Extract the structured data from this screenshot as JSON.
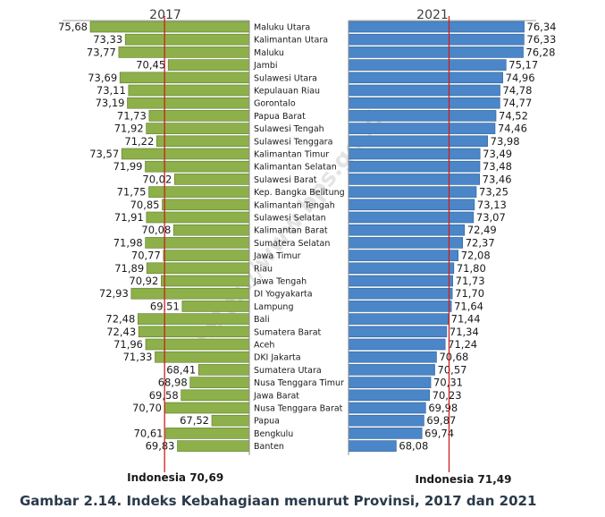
{
  "chart_data": {
    "type": "bar",
    "title": "Indeks Kebahagiaan menurut Provinsi, 2017 dan 2021",
    "panels": [
      {
        "year": "2017",
        "bar_color": "#8db04a",
        "reference_value": 70.69,
        "reference_label": "Indonesia 70,69",
        "orientation": "bars extend left from center",
        "categories": [
          "Maluku Utara",
          "Kalimantan Utara",
          "Maluku",
          "Jambi",
          "Sulawesi Utara",
          "Kepulauan Riau",
          "Gorontalo",
          "Papua Barat",
          "Sulawesi Tengah",
          "Sulawesi Tenggara",
          "Kalimantan Timur",
          "Kalimantan Selatan",
          "Sulawesi Barat",
          "Kep. Bangka Belitung",
          "Kalimantan Tengah",
          "Sulawesi Selatan",
          "Kalimantan Barat",
          "Sumatera Selatan",
          "Jawa Timur",
          "Riau",
          "Jawa Tengah",
          "DI Yogyakarta",
          "Lampung",
          "Bali",
          "Sumatera Barat",
          "Aceh",
          "DKI Jakarta",
          "Sumatera Utara",
          "Nusa Tenggara Timur",
          "Jawa Barat",
          "Nusa Tenggara Barat",
          "Papua",
          "Bengkulu",
          "Banten"
        ],
        "values": [
          75.68,
          73.33,
          73.77,
          70.45,
          73.69,
          73.11,
          73.19,
          71.73,
          71.92,
          71.22,
          73.57,
          71.99,
          70.02,
          71.75,
          70.85,
          71.91,
          70.08,
          71.98,
          70.77,
          71.89,
          70.92,
          72.93,
          69.51,
          72.48,
          72.43,
          71.96,
          71.33,
          68.41,
          68.98,
          69.58,
          70.7,
          67.52,
          70.61,
          69.83
        ],
        "value_labels": [
          "75,68",
          "73,33",
          "73,77",
          "70,45",
          "73,69",
          "73,11",
          "73,19",
          "71,73",
          "71,92",
          "71,22",
          "73,57",
          "71,99",
          "70,02",
          "71,75",
          "70,85",
          "71,91",
          "70,08",
          "71,98",
          "70,77",
          "71,89",
          "70,92",
          "72,93",
          "69,51",
          "72,48",
          "72,43",
          "71,96",
          "71,33",
          "68,41",
          "68,98",
          "69,58",
          "70,70",
          "67,52",
          "70,61",
          "69,83"
        ]
      },
      {
        "year": "2021",
        "bar_color": "#4a86c8",
        "reference_value": 71.49,
        "reference_label": "Indonesia 71,49",
        "orientation": "bars extend right",
        "values": [
          76.34,
          76.33,
          76.28,
          75.17,
          74.96,
          74.78,
          74.77,
          74.52,
          74.46,
          73.98,
          73.49,
          73.48,
          73.46,
          73.25,
          73.13,
          73.07,
          72.49,
          72.37,
          72.08,
          71.8,
          71.73,
          71.7,
          71.64,
          71.44,
          71.34,
          71.24,
          70.68,
          70.57,
          70.31,
          70.23,
          69.98,
          69.87,
          69.74,
          68.08
        ],
        "value_labels": [
          "76,34",
          "76,33",
          "76,28",
          "75,17",
          "74,96",
          "74,78",
          "74,77",
          "74,52",
          "74,46",
          "73,98",
          "73,49",
          "73,48",
          "73,46",
          "73,25",
          "73,13",
          "73,07",
          "72,49",
          "72,37",
          "72,08",
          "71,80",
          "71,73",
          "71,70",
          "71,64",
          "71,44",
          "71,34",
          "71,24",
          "70,68",
          "70,57",
          "70,31",
          "70,23",
          "69,98",
          "69,87",
          "69,74",
          "68,08"
        ]
      }
    ],
    "value_axis_range": [
      65,
      77
    ],
    "reference_line_color": "#cc2020",
    "watermark": "https://www.bps.go.id"
  },
  "caption": "Gambar 2.14.   Indeks Kebahagiaan menurut Provinsi, 2017 dan 2021"
}
